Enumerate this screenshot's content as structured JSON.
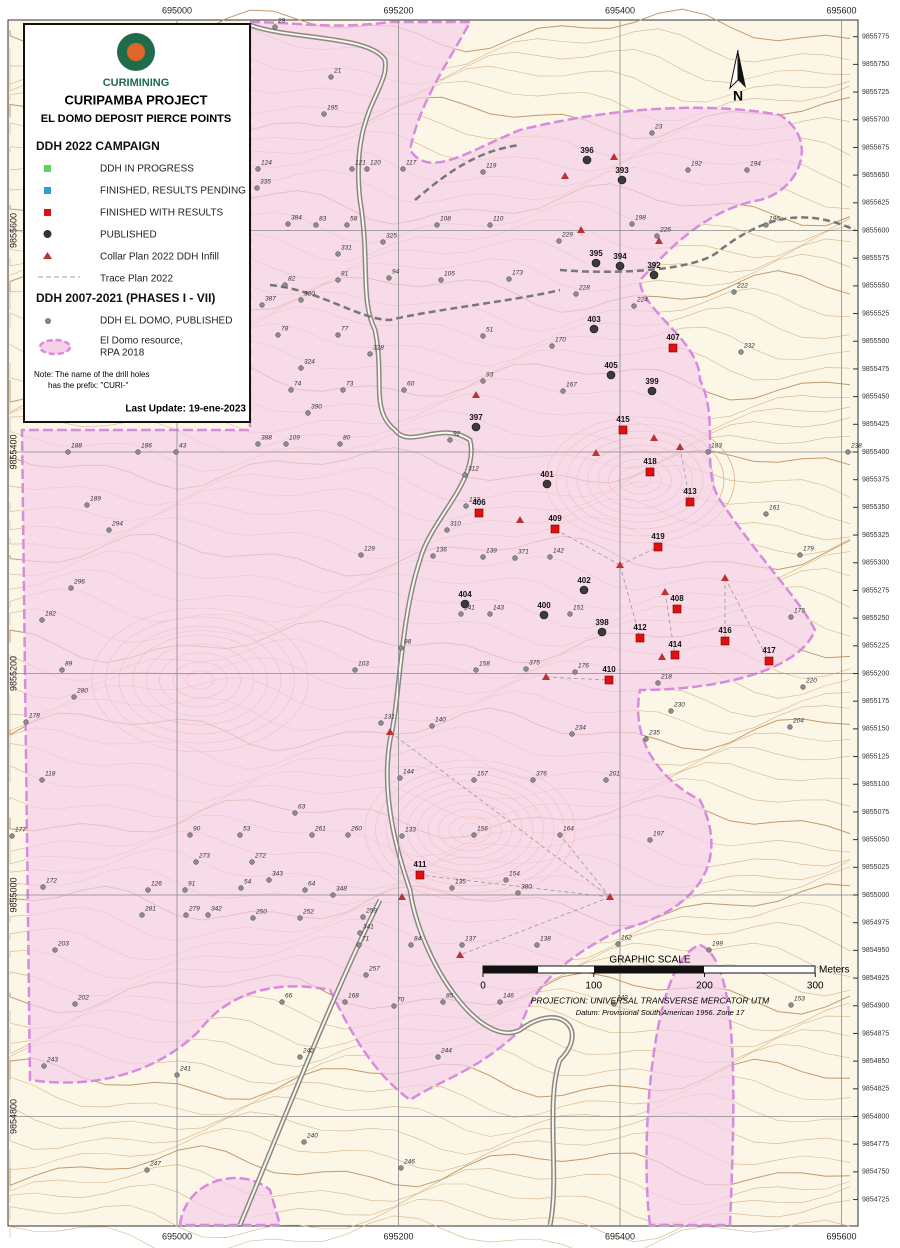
{
  "map": {
    "logo_text": "CURIMINING",
    "title": "CURIPAMBA PROJECT",
    "subtitle": "EL DOMO DEPOSIT PIERCE POINTS",
    "legend": {
      "section_2022": "DDH 2022 CAMPAIGN",
      "items_2022": [
        "DDH IN PROGRESS",
        "FINISHED, RESULTS PENDING",
        "FINISHED WITH RESULTS",
        "PUBLISHED",
        "Collar Plan 2022 DDH Infill",
        "Trace Plan 2022"
      ],
      "section_old": "DDH 2007-2021 (PHASES I - VII)",
      "item_old": "DDH EL DOMO, PUBLISHED",
      "resource": [
        "El Domo resource,",
        "RPA 2018"
      ],
      "note": [
        "Note: The name of the drill holes",
        "has the prefix: \"CURI-\""
      ],
      "last_update": "Last Update: 19-ene-2023"
    },
    "north": "N",
    "eastings": [
      695000,
      695200,
      695400,
      695600
    ],
    "northings": [
      9855600,
      9855400,
      9855200,
      9855000,
      9854800
    ],
    "northings_fine": [
      9855775,
      9855750,
      9855725,
      9855700,
      9855675,
      9855650,
      9855625,
      9855600,
      9855575,
      9855550,
      9855525,
      9855500,
      9855475,
      9855450,
      9855425,
      9855400,
      9855375,
      9855350,
      9855325,
      9855300,
      9855275,
      9855250,
      9855225,
      9855200,
      9855175,
      9855150,
      9855125,
      9855100,
      9855075,
      9855050,
      9855025,
      9855000,
      9854975,
      9854950,
      9854925,
      9854900,
      9854875,
      9854850,
      9854825,
      9854800,
      9854775,
      9854750,
      9854725
    ],
    "scale": {
      "title": "GRAPHIC SCALE",
      "ticks": [
        0,
        100,
        200,
        300
      ],
      "unit": "Meters",
      "projection": "PROJECTION: UNIVERSAL TRANSVERSE MERCATOR UTM",
      "datum": "Datum: Provisional South American 1956. Zone 17"
    },
    "holes_results": [
      "407",
      "415",
      "418",
      "413",
      "406",
      "409",
      "419",
      "408",
      "412",
      "414",
      "416",
      "417",
      "410",
      "411"
    ],
    "holes_published": [
      "396",
      "393",
      "395",
      "394",
      "392",
      "403",
      "405",
      "399",
      "397",
      "401",
      "402",
      "404",
      "400",
      "398"
    ],
    "holes_old": [
      "186",
      "188",
      "43",
      "189",
      "294",
      "296",
      "182",
      "89",
      "280",
      "178",
      "118",
      "177",
      "172",
      "203",
      "202",
      "243",
      "247",
      "241",
      "240",
      "242",
      "244",
      "246",
      "146",
      "85",
      "70",
      "168",
      "66",
      "142",
      "153",
      "199",
      "162",
      "197",
      "204",
      "220",
      "175",
      "179",
      "161",
      "183",
      "238",
      "232",
      "222",
      "196",
      "194",
      "192",
      "23",
      "226",
      "198",
      "224",
      "228",
      "229",
      "173",
      "170",
      "167",
      "51",
      "93",
      "110",
      "108",
      "117",
      "119",
      "21",
      "29",
      "195",
      "121",
      "120",
      "124",
      "335",
      "384",
      "83",
      "58",
      "325",
      "331",
      "94",
      "105",
      "81",
      "82",
      "387",
      "330",
      "78",
      "77",
      "328",
      "324",
      "74",
      "73",
      "60",
      "390",
      "388",
      "109",
      "80",
      "92",
      "312",
      "132",
      "310",
      "136",
      "129",
      "141",
      "143",
      "139",
      "371",
      "142",
      "151",
      "158",
      "375",
      "176",
      "218",
      "230",
      "235",
      "234",
      "201",
      "376",
      "157",
      "156",
      "164",
      "154",
      "380",
      "135",
      "137",
      "138",
      "131",
      "140",
      "103",
      "98",
      "144",
      "133",
      "71",
      "84",
      "257",
      "260",
      "261",
      "63",
      "53",
      "90",
      "273",
      "272",
      "343",
      "54",
      "91",
      "126",
      "281",
      "279",
      "342",
      "250",
      "252",
      "341",
      "64",
      "348",
      "259"
    ]
  }
}
